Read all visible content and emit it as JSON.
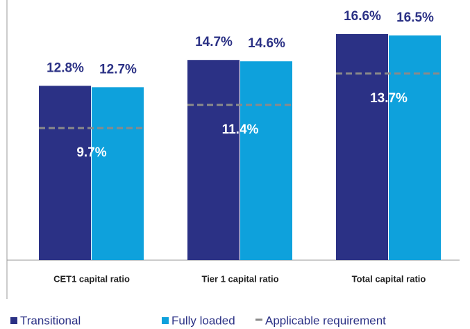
{
  "chart_data": {
    "type": "bar",
    "categories": [
      "CET1 capital ratio",
      "Tier 1 capital ratio",
      "Total capital ratio"
    ],
    "series": [
      {
        "name": "Transitional",
        "color": "#2b3185",
        "mark": "bar",
        "values": [
          12.8,
          14.7,
          16.6
        ],
        "value_labels": [
          "12.8%",
          "14.7%",
          "16.6%"
        ]
      },
      {
        "name": "Fully loaded",
        "color": "#0ea1dc",
        "mark": "bar",
        "values": [
          12.7,
          14.6,
          16.5
        ],
        "value_labels": [
          "12.7%",
          "14.6%",
          "16.5%"
        ]
      },
      {
        "name": "Applicable requirement",
        "color": "#8a8a8a",
        "mark": "dash",
        "values": [
          9.7,
          11.4,
          13.7
        ],
        "value_labels": [
          "9.7%",
          "11.4%",
          "13.7%"
        ]
      }
    ]
  }
}
